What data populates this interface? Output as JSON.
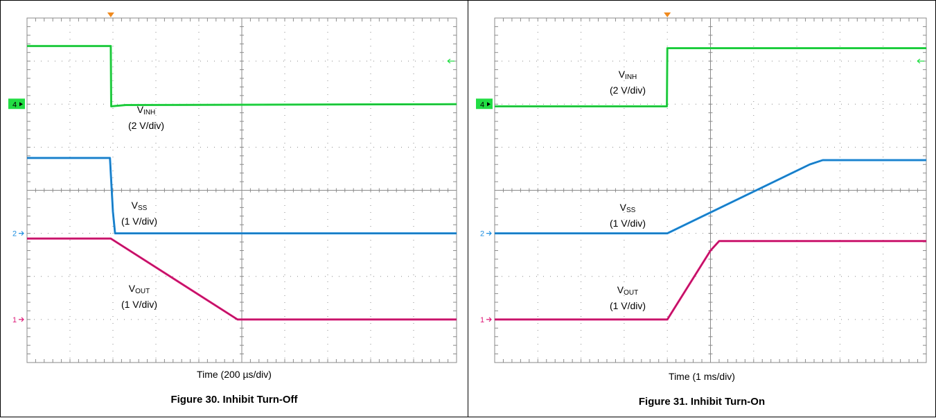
{
  "colors": {
    "vinh": "#22dd44",
    "vss": "#1f8fe0",
    "vout": "#dd1877",
    "grid": "#8a8a8a",
    "trigger": "#f08a1e"
  },
  "chart_data": [
    {
      "type": "line",
      "caption": "Figure 30. Inhibit Turn-Off",
      "xlabel": "Time (200 µs/div)",
      "x_unit": "div",
      "xlim": [
        0,
        10
      ],
      "ylim": [
        -4,
        4
      ],
      "grid": true,
      "grid_divisions": {
        "x": 10,
        "y": 8
      },
      "markers": [
        {
          "label": "4",
          "channel": "vinh",
          "y": 2
        },
        {
          "label": "2",
          "channel": "vss",
          "y": -1
        },
        {
          "label": "1",
          "channel": "vout",
          "y": -3
        }
      ],
      "series": [
        {
          "channel": "vinh",
          "name_main": "V",
          "name_sub": "INH",
          "scale": "(2 V/div)",
          "x": [
            0,
            1.95,
            1.96,
            2.3,
            10
          ],
          "y": [
            3.35,
            3.35,
            1.95,
            1.98,
            2.0
          ]
        },
        {
          "channel": "vss",
          "name_main": "V",
          "name_sub": "SS",
          "scale": "(1 V/div)",
          "x": [
            0,
            1.93,
            2.0,
            2.05,
            2.2,
            10
          ],
          "y": [
            0.75,
            0.75,
            -0.5,
            -1.0,
            -1.0,
            -1.0
          ]
        },
        {
          "channel": "vout",
          "name_main": "V",
          "name_sub": "OUT",
          "scale": "(1 V/div)",
          "x": [
            0,
            1.95,
            4.9,
            10
          ],
          "y": [
            -1.12,
            -1.12,
            -3.0,
            -3.0
          ]
        }
      ]
    },
    {
      "type": "line",
      "caption": "Figure 31. Inhibit Turn-On",
      "xlabel": "Time (1 ms/div)",
      "x_unit": "div",
      "xlim": [
        0,
        10
      ],
      "ylim": [
        -4,
        4
      ],
      "grid": true,
      "grid_divisions": {
        "x": 10,
        "y": 8
      },
      "markers": [
        {
          "label": "4",
          "channel": "vinh",
          "y": 2
        },
        {
          "label": "2",
          "channel": "vss",
          "y": -1
        },
        {
          "label": "1",
          "channel": "vout",
          "y": -3
        }
      ],
      "series": [
        {
          "channel": "vinh",
          "name_main": "V",
          "name_sub": "INH",
          "scale": "(2 V/div)",
          "x": [
            0,
            3.99,
            4.0,
            10
          ],
          "y": [
            1.95,
            1.95,
            3.3,
            3.3
          ]
        },
        {
          "channel": "vss",
          "name_main": "V",
          "name_sub": "SS",
          "scale": "(1 V/div)",
          "x": [
            0,
            4.0,
            7.3,
            7.6,
            10
          ],
          "y": [
            -1.0,
            -1.0,
            0.6,
            0.7,
            0.7
          ]
        },
        {
          "channel": "vout",
          "name_main": "V",
          "name_sub": "OUT",
          "scale": "(1 V/div)",
          "x": [
            0,
            4.0,
            5.0,
            5.2,
            10
          ],
          "y": [
            -3.0,
            -3.0,
            -1.4,
            -1.18,
            -1.18
          ]
        }
      ]
    }
  ]
}
